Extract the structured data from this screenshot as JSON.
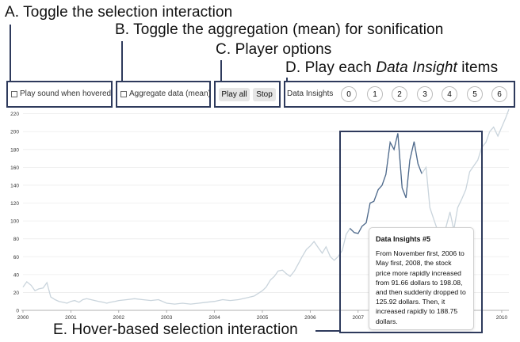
{
  "callouts": {
    "a": "A. Toggle the selection interaction",
    "b": "B. Toggle the aggregation (mean) for sonification",
    "c": "C. Player options",
    "d_prefix": "D. Play each ",
    "d_em": "Data Insight",
    "d_suffix": " items",
    "e": "E. Hover-based selection interaction"
  },
  "controls": {
    "hover_sound_label": "Play sound when hovered",
    "aggregate_label": "Aggregate data (mean)",
    "play_all_label": "Play all",
    "stop_label": "Stop",
    "insights_label": "Data Insights",
    "insight_buttons": [
      "0",
      "1",
      "2",
      "3",
      "4",
      "5",
      "6"
    ]
  },
  "tooltip": {
    "title": "Data Insights #5",
    "body": "From November first, 2006 to May first, 2008, the stock price more rapidly increased from 91.66 dollars to 198.08, and then suddenly dropped to 125.92 dollars. Then, it increased rapidly to 188.75 dollars."
  },
  "colors": {
    "line": "#c9d4dc",
    "highlight": "#4f6a8c",
    "frame": "#2e3a5c"
  },
  "chart_data": {
    "type": "line",
    "xlim": [
      2000,
      2010.15
    ],
    "ylim": [
      0,
      225
    ],
    "xticks": [
      "2000",
      "2001",
      "2002",
      "2003",
      "2004",
      "2005",
      "2006",
      "2007",
      "2008",
      "2009",
      "2010"
    ],
    "yticks": [
      "0",
      "20",
      "40",
      "60",
      "80",
      "100",
      "120",
      "140",
      "160",
      "180",
      "200",
      "220"
    ],
    "highlight_range": [
      2006.83,
      2008.33
    ],
    "x": [
      2000.0,
      2000.08,
      2000.17,
      2000.25,
      2000.33,
      2000.42,
      2000.5,
      2000.58,
      2000.67,
      2000.75,
      2000.83,
      2000.92,
      2001.0,
      2001.08,
      2001.17,
      2001.25,
      2001.33,
      2001.42,
      2001.5,
      2001.58,
      2001.67,
      2001.75,
      2001.83,
      2001.92,
      2002.0,
      2002.17,
      2002.33,
      2002.5,
      2002.67,
      2002.83,
      2003.0,
      2003.17,
      2003.33,
      2003.5,
      2003.67,
      2003.83,
      2004.0,
      2004.17,
      2004.33,
      2004.5,
      2004.67,
      2004.83,
      2005.0,
      2005.08,
      2005.17,
      2005.25,
      2005.33,
      2005.42,
      2005.5,
      2005.58,
      2005.67,
      2005.75,
      2005.83,
      2005.92,
      2006.0,
      2006.08,
      2006.17,
      2006.25,
      2006.33,
      2006.42,
      2006.5,
      2006.58,
      2006.67,
      2006.75,
      2006.83,
      2006.92,
      2007.0,
      2007.08,
      2007.17,
      2007.25,
      2007.33,
      2007.42,
      2007.5,
      2007.58,
      2007.67,
      2007.75,
      2007.83,
      2007.92,
      2008.0,
      2008.08,
      2008.17,
      2008.25,
      2008.33,
      2008.42,
      2008.5,
      2008.58,
      2008.67,
      2008.75,
      2008.83,
      2008.92,
      2009.0,
      2009.08,
      2009.17,
      2009.25,
      2009.33,
      2009.42,
      2009.5,
      2009.58,
      2009.67,
      2009.75,
      2009.83,
      2009.92,
      2010.0,
      2010.08,
      2010.15
    ],
    "y": [
      26,
      32,
      28,
      22,
      24,
      25,
      31,
      15,
      12,
      10,
      9,
      8,
      10,
      11,
      9,
      12,
      13,
      12,
      11,
      10,
      9,
      8,
      9,
      10,
      11,
      12,
      13,
      12,
      11,
      12,
      8,
      7,
      8,
      7,
      8,
      9,
      10,
      12,
      11,
      12,
      14,
      16,
      22,
      26,
      34,
      38,
      44,
      45,
      41,
      38,
      44,
      52,
      60,
      68,
      72,
      77,
      70,
      64,
      71,
      60,
      56,
      60,
      67,
      85,
      91.66,
      87,
      86,
      94,
      98,
      120,
      122,
      135,
      140,
      152,
      188,
      180,
      198.08,
      137,
      125.92,
      168,
      188.75,
      164,
      153,
      160,
      115,
      102,
      88,
      80,
      92,
      110,
      90,
      115,
      125,
      135,
      155,
      162,
      168,
      182,
      188,
      200,
      205,
      195,
      205,
      215,
      225
    ]
  }
}
